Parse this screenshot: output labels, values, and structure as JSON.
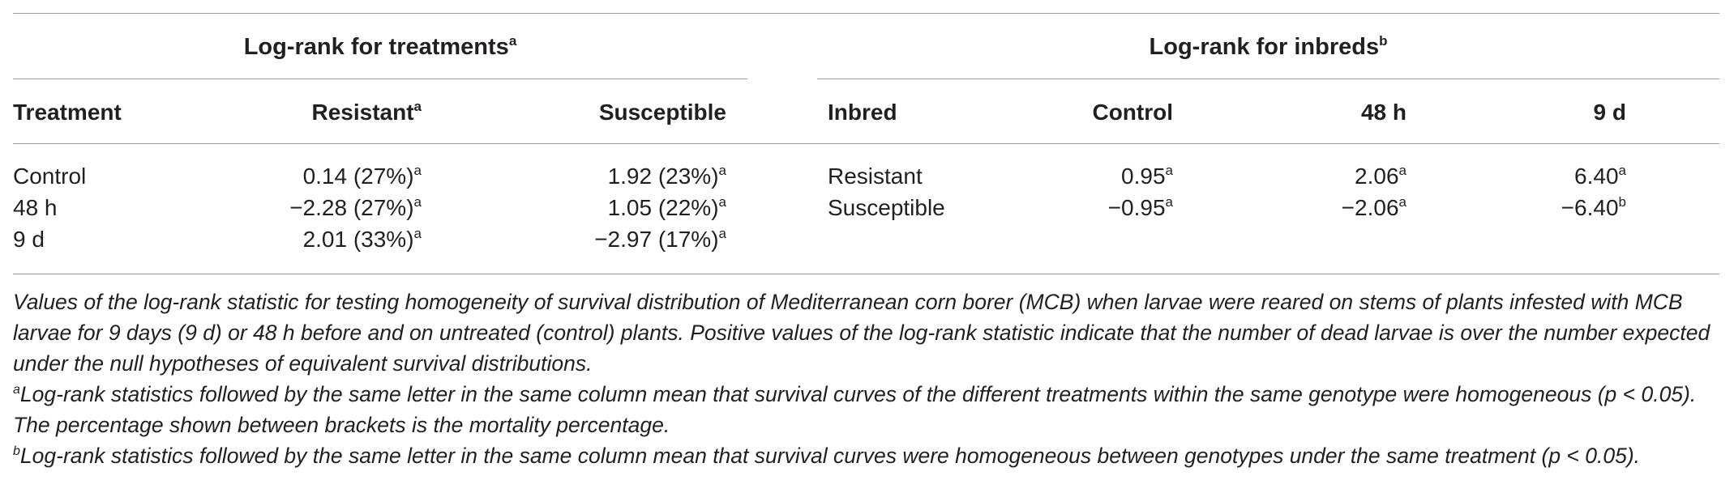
{
  "left_group": {
    "title": "Log-rank for treatments",
    "sup": "a"
  },
  "right_group": {
    "title": "Log-rank for inbreds",
    "sup": "b"
  },
  "left_headers": [
    {
      "text": "Treatment",
      "sup": ""
    },
    {
      "text": "Resistant",
      "sup": "a"
    },
    {
      "text": "Susceptible",
      "sup": ""
    }
  ],
  "right_headers": [
    {
      "text": "Inbred",
      "sup": ""
    },
    {
      "text": "Control",
      "sup": ""
    },
    {
      "text": "48 h",
      "sup": ""
    },
    {
      "text": "9 d",
      "sup": ""
    }
  ],
  "left_rows": [
    {
      "treatment": "Control",
      "resistant": "0.14 (27%)",
      "resistant_sup": "a",
      "susceptible": "1.92 (23%)",
      "susceptible_sup": "a"
    },
    {
      "treatment": "48 h",
      "resistant": "−2.28 (27%)",
      "resistant_sup": "a",
      "susceptible": "1.05 (22%)",
      "susceptible_sup": "a"
    },
    {
      "treatment": "9 d",
      "resistant": "2.01 (33%)",
      "resistant_sup": "a",
      "susceptible": "−2.97 (17%)",
      "susceptible_sup": "a"
    }
  ],
  "right_rows": [
    {
      "inbred": "Resistant",
      "control": "0.95",
      "control_sup": "a",
      "h48": "2.06",
      "h48_sup": "a",
      "d9": "6.40",
      "d9_sup": "a"
    },
    {
      "inbred": "Susceptible",
      "control": "−0.95",
      "control_sup": "a",
      "h48": "−2.06",
      "h48_sup": "a",
      "d9": "−6.40",
      "d9_sup": "b"
    }
  ],
  "footnotes": {
    "main": "Values of the log-rank statistic for testing homogeneity of survival distribution of Mediterranean corn borer (MCB) when larvae were reared on stems of plants infested with MCB larvae for 9 days (9 d) or 48 h before and on untreated (control) plants. Positive values of the log-rank statistic indicate that the number of dead larvae is over the number expected under the null hypotheses of equivalent survival distributions.",
    "a_mark": "a",
    "a_text": "Log-rank statistics followed by the same letter in the same column mean that survival curves of the different treatments within the same genotype were homogeneous (p < 0.05). The percentage shown between brackets is the mortality percentage.",
    "b_mark": "b",
    "b_text": "Log-rank statistics followed by the same letter in the same column mean that survival curves were homogeneous between genotypes under the same treatment (p < 0.05)."
  }
}
